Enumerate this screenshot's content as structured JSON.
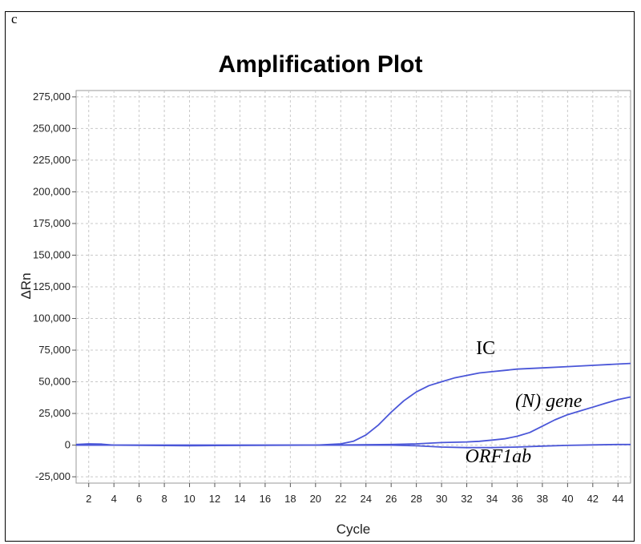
{
  "panel_letter": "c",
  "chart_data": {
    "type": "line",
    "title": "Amplification Plot",
    "xlabel": "Cycle",
    "ylabel": "ΔRn",
    "xlim": [
      1,
      45
    ],
    "ylim": [
      -30000,
      280000
    ],
    "grid": true,
    "x_ticks": [
      2,
      4,
      6,
      8,
      10,
      12,
      14,
      16,
      18,
      20,
      22,
      24,
      26,
      28,
      30,
      32,
      34,
      36,
      38,
      40,
      42,
      44
    ],
    "y_ticks": [
      -25000,
      0,
      25000,
      50000,
      75000,
      100000,
      125000,
      150000,
      175000,
      200000,
      225000,
      250000,
      275000
    ],
    "y_tick_labels": [
      "-25,000",
      "0",
      "25,000",
      "50,000",
      "75,000",
      "100,000",
      "125,000",
      "150,000",
      "175,000",
      "200,000",
      "225,000",
      "250,000",
      "275,000"
    ],
    "line_color": "#4a56d8",
    "series": [
      {
        "name": "IC",
        "points": [
          [
            1,
            500
          ],
          [
            2,
            1000
          ],
          [
            3,
            800
          ],
          [
            4,
            0
          ],
          [
            10,
            -500
          ],
          [
            12,
            -300
          ],
          [
            20,
            0
          ],
          [
            22,
            1000
          ],
          [
            23,
            3000
          ],
          [
            24,
            8000
          ],
          [
            25,
            16000
          ],
          [
            26,
            26000
          ],
          [
            27,
            35000
          ],
          [
            28,
            42000
          ],
          [
            29,
            47000
          ],
          [
            30,
            50000
          ],
          [
            31,
            53000
          ],
          [
            32,
            55000
          ],
          [
            33,
            57000
          ],
          [
            34,
            58000
          ],
          [
            35,
            59000
          ],
          [
            36,
            60000
          ],
          [
            38,
            61000
          ],
          [
            40,
            62000
          ],
          [
            42,
            63000
          ],
          [
            44,
            64000
          ],
          [
            45,
            64500
          ]
        ]
      },
      {
        "name": "(N) gene",
        "points": [
          [
            1,
            0
          ],
          [
            20,
            0
          ],
          [
            26,
            500
          ],
          [
            28,
            1000
          ],
          [
            30,
            2000
          ],
          [
            32,
            2500
          ],
          [
            33,
            3000
          ],
          [
            34,
            4000
          ],
          [
            35,
            5000
          ],
          [
            36,
            7000
          ],
          [
            37,
            10000
          ],
          [
            38,
            15000
          ],
          [
            39,
            20000
          ],
          [
            40,
            24000
          ],
          [
            41,
            27000
          ],
          [
            42,
            30000
          ],
          [
            43,
            33000
          ],
          [
            44,
            36000
          ],
          [
            45,
            38000
          ]
        ]
      },
      {
        "name": "ORF1ab",
        "points": [
          [
            1,
            0
          ],
          [
            26,
            0
          ],
          [
            28,
            -500
          ],
          [
            30,
            -1500
          ],
          [
            32,
            -2000
          ],
          [
            34,
            -2000
          ],
          [
            36,
            -1500
          ],
          [
            38,
            -800
          ],
          [
            40,
            -200
          ],
          [
            42,
            200
          ],
          [
            44,
            500
          ],
          [
            45,
            500
          ]
        ]
      }
    ],
    "annotations": [
      {
        "text": "IC",
        "series": "IC"
      },
      {
        "text": "(N) gene",
        "series": "(N) gene"
      },
      {
        "text": "ORF1ab",
        "series": "ORF1ab"
      }
    ]
  }
}
